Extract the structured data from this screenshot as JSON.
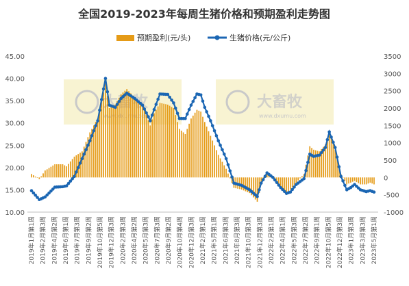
{
  "chart_data": {
    "type": "bar+line",
    "title": "全国2019-2023年每周生猪价格和预期盈利走势图",
    "legend_position": "top",
    "grid": false,
    "colors": {
      "bar": "#E59B17",
      "line": "#1B66B3",
      "title": "#333333"
    },
    "watermark": {
      "brand": "大畜牧",
      "url": "www.dxumu.com"
    },
    "series": [
      {
        "name": "预期盈利(元/头)",
        "type": "bar",
        "axis": "right"
      },
      {
        "name": "生猪价格(元/公斤)",
        "type": "line",
        "axis": "left"
      }
    ],
    "y_left": {
      "min": 10,
      "max": 45,
      "ticks": [
        "10.00",
        "15.00",
        "20.00",
        "25.00",
        "30.00",
        "35.00",
        "40.00",
        "45.00"
      ]
    },
    "y_right": {
      "min": -1000,
      "max": 3500,
      "ticks": [
        "-1000",
        "-500",
        "0",
        "500",
        "1000",
        "1500",
        "2000",
        "2500",
        "3000",
        "3500"
      ]
    },
    "x_tick_labels": [
      "2019年1月第1周",
      "2019年2月第3周",
      "2019年4月第2周",
      "2019年6月第1周",
      "2019年7月第3周",
      "2019年9月第2周",
      "2019年10月第5周",
      "2019年12月第3周",
      "2020年2月第3周",
      "2020年4月第2周",
      "2020年5月第3周",
      "2020年7月第3周",
      "2020年9月第2周",
      "2020年10月第4周",
      "2020年12月第3周",
      "2021年2月第1周",
      "2021年5月第1周",
      "2021年6月第3周",
      "2021年8月第3周",
      "2021年10月第3周",
      "2021年12月第3周",
      "2022年2月第1周",
      "2022年4月第1周",
      "2022年5月第3周",
      "2022年7月第2周",
      "2022年9月第1周",
      "2022年10月第5周",
      "2022年12月第3周",
      "2023年1月第3周",
      "2023年3月第3周",
      "2023年5月第1周"
    ],
    "control_points": [
      {
        "week": 0,
        "price": 14.8,
        "profit": 100
      },
      {
        "week": 4,
        "price": 12.8,
        "profit": -50
      },
      {
        "week": 7,
        "price": 13.4,
        "profit": 200
      },
      {
        "week": 12,
        "price": 15.6,
        "profit": 380
      },
      {
        "week": 16,
        "price": 15.7,
        "profit": 380
      },
      {
        "week": 18,
        "price": 15.9,
        "profit": 320
      },
      {
        "week": 22,
        "price": 18.0,
        "profit": 600
      },
      {
        "week": 26,
        "price": 22.0,
        "profit": 750
      },
      {
        "week": 30,
        "price": 26.0,
        "profit": 1300
      },
      {
        "week": 34,
        "price": 30.5,
        "profit": 1700
      },
      {
        "week": 38,
        "price": 40.0,
        "profit": 2700
      },
      {
        "week": 40,
        "price": 34.0,
        "profit": 2000
      },
      {
        "week": 43,
        "price": 33.5,
        "profit": 2100
      },
      {
        "week": 46,
        "price": 35.5,
        "profit": 2400
      },
      {
        "week": 49,
        "price": 36.7,
        "profit": 2550
      },
      {
        "week": 53,
        "price": 35.5,
        "profit": 2300
      },
      {
        "week": 57,
        "price": 34.0,
        "profit": 2100
      },
      {
        "week": 61,
        "price": 30.5,
        "profit": 1500
      },
      {
        "week": 63,
        "price": 33.0,
        "profit": 1850
      },
      {
        "week": 66,
        "price": 36.5,
        "profit": 2150
      },
      {
        "week": 70,
        "price": 36.4,
        "profit": 2100
      },
      {
        "week": 73,
        "price": 34.5,
        "profit": 2000
      },
      {
        "week": 76,
        "price": 31.0,
        "profit": 1400
      },
      {
        "week": 79,
        "price": 31.0,
        "profit": 1250
      },
      {
        "week": 82,
        "price": 34.0,
        "profit": 1700
      },
      {
        "week": 85,
        "price": 36.5,
        "profit": 1950
      },
      {
        "week": 87,
        "price": 36.3,
        "profit": 1900
      },
      {
        "week": 89,
        "price": 33.5,
        "profit": 1600
      },
      {
        "week": 92,
        "price": 30.5,
        "profit": 1200
      },
      {
        "week": 96,
        "price": 26.0,
        "profit": 650
      },
      {
        "week": 100,
        "price": 22.0,
        "profit": 250
      },
      {
        "week": 104,
        "price": 16.5,
        "profit": -300
      },
      {
        "week": 108,
        "price": 16.0,
        "profit": -350
      },
      {
        "week": 112,
        "price": 15.0,
        "profit": -450
      },
      {
        "week": 116,
        "price": 13.5,
        "profit": -700
      },
      {
        "week": 118,
        "price": 16.5,
        "profit": -200
      },
      {
        "week": 121,
        "price": 18.8,
        "profit": 150
      },
      {
        "week": 124,
        "price": 17.8,
        "profit": 0
      },
      {
        "week": 128,
        "price": 15.5,
        "profit": -250
      },
      {
        "week": 131,
        "price": 14.2,
        "profit": -500
      },
      {
        "week": 133,
        "price": 14.5,
        "profit": -350
      },
      {
        "week": 136,
        "price": 16.2,
        "profit": -150
      },
      {
        "week": 140,
        "price": 17.5,
        "profit": 100
      },
      {
        "week": 143,
        "price": 23.0,
        "profit": 900
      },
      {
        "week": 145,
        "price": 22.5,
        "profit": 800
      },
      {
        "week": 148,
        "price": 22.8,
        "profit": 750
      },
      {
        "week": 151,
        "price": 24.5,
        "profit": 950
      },
      {
        "week": 153,
        "price": 28.0,
        "profit": 1300
      },
      {
        "week": 156,
        "price": 24.5,
        "profit": 800
      },
      {
        "week": 159,
        "price": 18.0,
        "profit": 100
      },
      {
        "week": 162,
        "price": 15.0,
        "profit": -200
      },
      {
        "week": 164,
        "price": 15.5,
        "profit": -150
      },
      {
        "week": 166,
        "price": 16.2,
        "profit": -100
      },
      {
        "week": 169,
        "price": 15.0,
        "profit": -200
      },
      {
        "week": 172,
        "price": 14.6,
        "profit": -200
      },
      {
        "week": 174,
        "price": 14.8,
        "profit": -150
      },
      {
        "week": 176,
        "price": 14.5,
        "profit": -200
      }
    ]
  }
}
